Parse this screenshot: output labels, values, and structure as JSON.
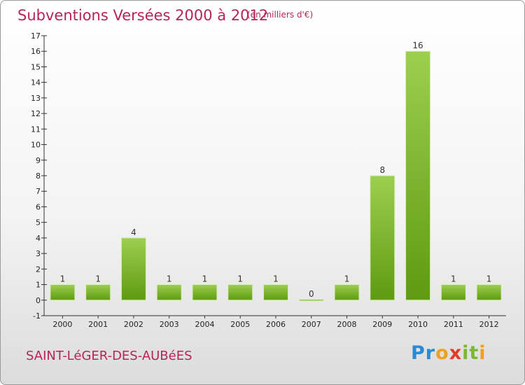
{
  "header": {
    "title": "Subventions Versées 2000 à 2012",
    "subtitle": "(en milliers d'€)"
  },
  "footer": {
    "commune": "SAINT-LéGER-DES-AUBéES",
    "logo_letters": [
      {
        "ch": "P",
        "color": "#2a8bd0"
      },
      {
        "ch": "r",
        "color": "#2a8bd0"
      },
      {
        "ch": "o",
        "color": "#f0a020"
      },
      {
        "ch": "x",
        "color": "#e03c28"
      },
      {
        "ch": "i",
        "color": "#7ab82c"
      },
      {
        "ch": "t",
        "color": "#7ab82c"
      },
      {
        "ch": "i",
        "color": "#f0a020"
      }
    ]
  },
  "colors": {
    "accent": "#b5245a",
    "bar_light": "#9ccf4e",
    "bar_dark": "#5f9a12"
  },
  "chart_data": {
    "type": "bar",
    "title": "Subventions Versées 2000 à 2012",
    "subtitle": "(en milliers d'€)",
    "categories": [
      "2000",
      "2001",
      "2002",
      "2003",
      "2004",
      "2005",
      "2006",
      "2007",
      "2008",
      "2009",
      "2010",
      "2011",
      "2012"
    ],
    "values": [
      1,
      1,
      4,
      1,
      1,
      1,
      1,
      0,
      1,
      8,
      16,
      1,
      1
    ],
    "ylim": [
      -1,
      17
    ],
    "yticks": [
      -1,
      0,
      1,
      2,
      3,
      4,
      5,
      6,
      7,
      8,
      9,
      10,
      11,
      12,
      13,
      14,
      15,
      16,
      17
    ],
    "grid": false
  }
}
